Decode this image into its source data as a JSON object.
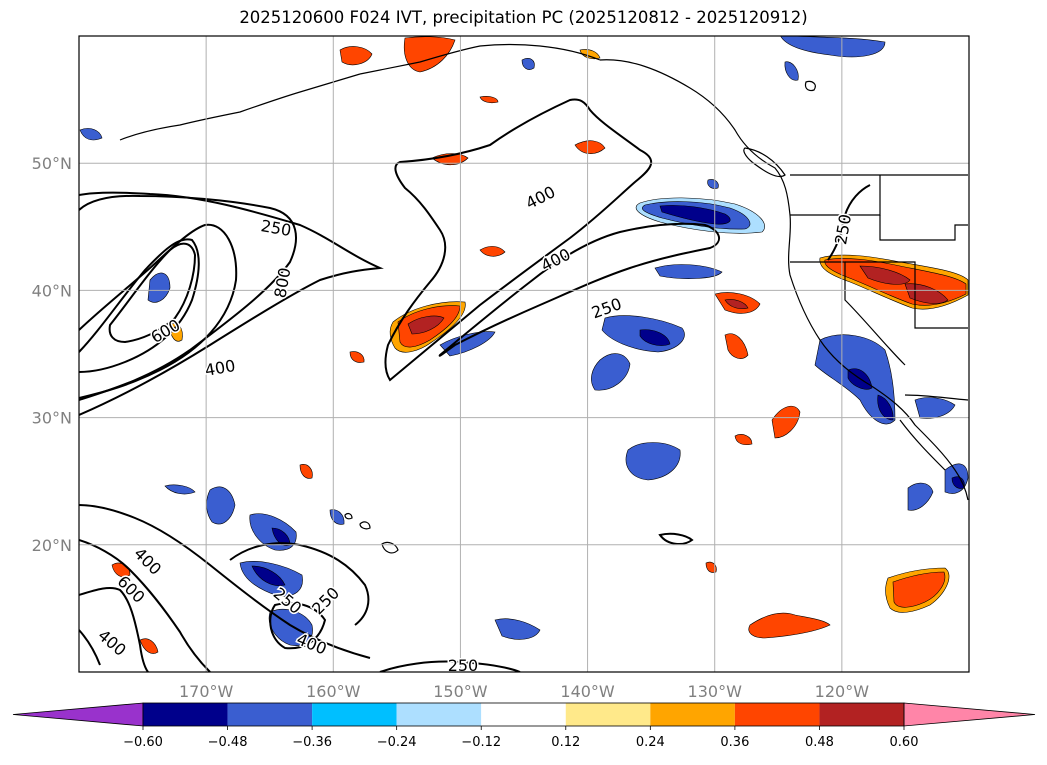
{
  "title": "2025120600 F024 IVT, precipitation PC (2025120812 - 2025120912)",
  "map": {
    "lon_range": [
      -180,
      -110
    ],
    "lat_range": [
      10,
      60
    ],
    "lon_ticks": [
      {
        "value": -170,
        "label": "170°W"
      },
      {
        "value": -160,
        "label": "160°W"
      },
      {
        "value": -150,
        "label": "150°W"
      },
      {
        "value": -140,
        "label": "140°W"
      },
      {
        "value": -130,
        "label": "130°W"
      },
      {
        "value": -120,
        "label": "120°W"
      }
    ],
    "lat_ticks": [
      {
        "value": 50,
        "label": "50°N"
      },
      {
        "value": 40,
        "label": "40°N"
      },
      {
        "value": 30,
        "label": "30°N"
      },
      {
        "value": 20,
        "label": "20°N"
      }
    ],
    "gridlines": true
  },
  "contour_labels": [
    {
      "text": "250",
      "lon": -164.5,
      "lat": 44.9,
      "angle": 10
    },
    {
      "text": "800",
      "lon": -164.0,
      "lat": 40.6,
      "angle": -80
    },
    {
      "text": "600",
      "lon": -173.2,
      "lat": 36.8,
      "angle": -30
    },
    {
      "text": "400",
      "lon": -168.9,
      "lat": 33.9,
      "angle": -10
    },
    {
      "text": "400",
      "lon": -143.7,
      "lat": 47.3,
      "angle": -27
    },
    {
      "text": "400",
      "lon": -142.5,
      "lat": 42.4,
      "angle": -27
    },
    {
      "text": "250",
      "lon": -138.5,
      "lat": 38.6,
      "angle": -20
    },
    {
      "text": "250",
      "lon": -119.9,
      "lat": 44.8,
      "angle": -80
    },
    {
      "text": "400",
      "lon": -174.6,
      "lat": 18.7,
      "angle": 45
    },
    {
      "text": "600",
      "lon": -175.9,
      "lat": 16.5,
      "angle": 45
    },
    {
      "text": "400",
      "lon": -177.4,
      "lat": 12.3,
      "angle": 40
    },
    {
      "text": "250",
      "lon": -163.6,
      "lat": 15.6,
      "angle": 40
    },
    {
      "text": "250",
      "lon": -160.6,
      "lat": 15.6,
      "angle": -45
    },
    {
      "text": "400",
      "lon": -161.7,
      "lat": 12.2,
      "angle": 22
    },
    {
      "text": "250",
      "lon": -149.8,
      "lat": 10.5,
      "angle": 0
    }
  ],
  "colorbar": {
    "levels": [
      "−0.60",
      "−0.48",
      "−0.36",
      "−0.24",
      "−0.12",
      "0.12",
      "0.24",
      "0.36",
      "0.48",
      "0.60"
    ],
    "colors": [
      "#9932CC",
      "#00008B",
      "#3A5ED0",
      "#00BFFF",
      "#ADDFFF",
      "#FFFFFF",
      "#FFE98A",
      "#FFA500",
      "#FF4500",
      "#B22222",
      "#FF85A8"
    ]
  },
  "colors": {
    "frame": "#000000",
    "grid": "#b0b0b0",
    "ticklabel": "#808080"
  }
}
